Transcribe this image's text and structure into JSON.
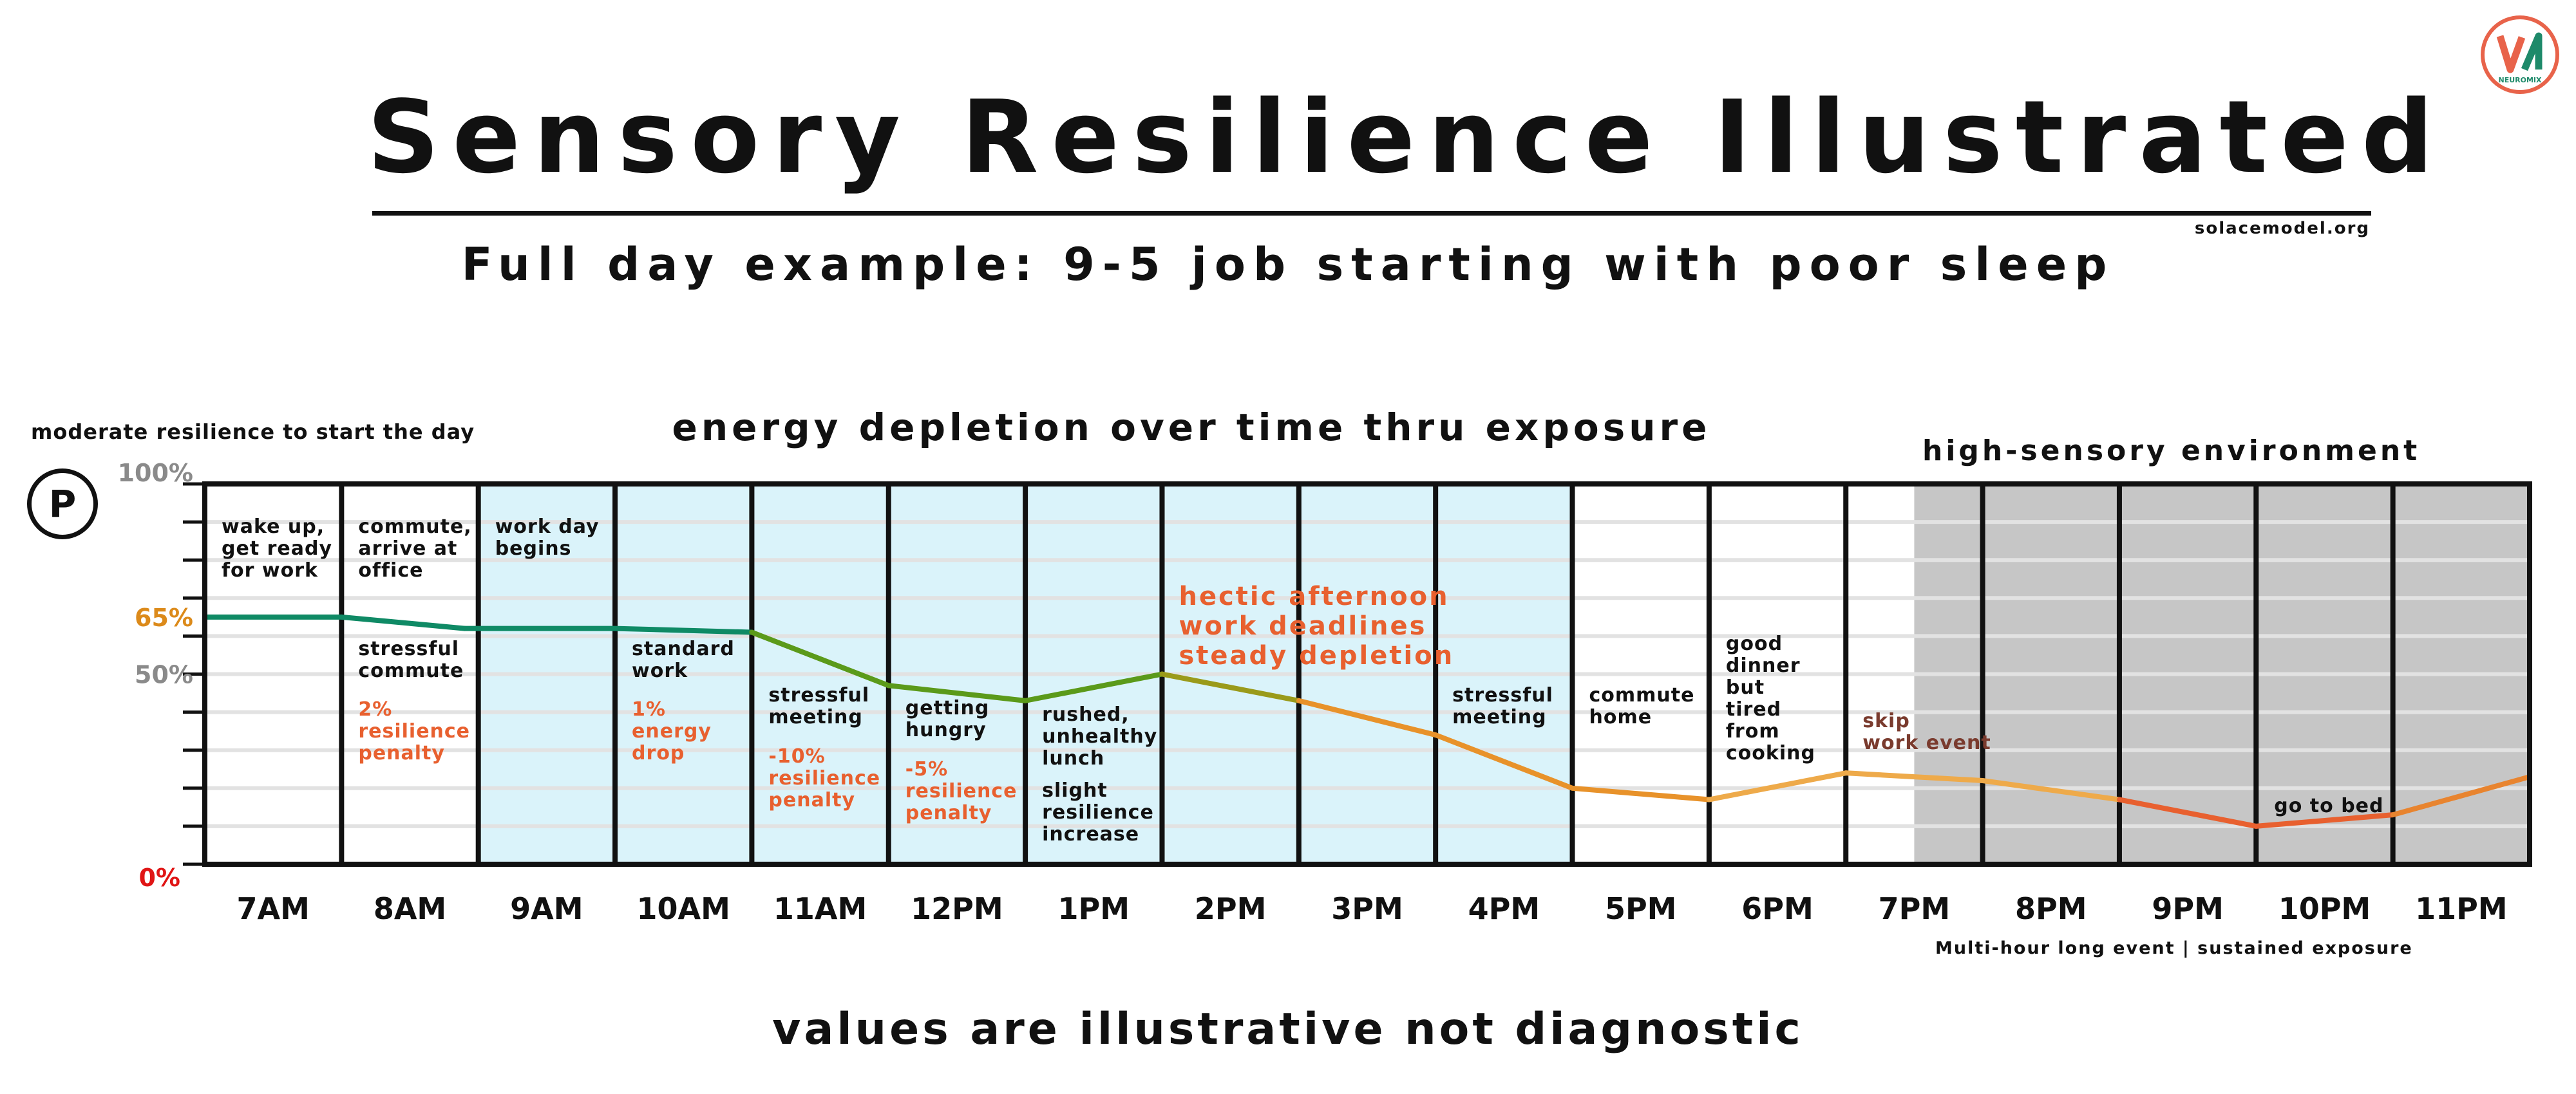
{
  "title": "Sensory Resilience Illustrated",
  "site": "solacemodel.org",
  "subtitle": "Full day example:  9-5 job starting with poor sleep",
  "start_note": "moderate resilience to start the day",
  "badge_letter": "P",
  "chart_title": "energy depletion over time thru exposure",
  "environment_label": "high-sensory environment",
  "multi_hour_note": "Multi-hour long event | sustained exposure",
  "footer": "values are illustrative not diagnostic",
  "logo_text": "NEUROMIX",
  "colors": {
    "work_shade": "#daf3fa",
    "high_sensory_shade": "#c6c6c6",
    "accent_orange": "#e8602f",
    "label_65": "#dc8a1a",
    "label_0": "#e01515",
    "axis_gray": "#8a8a8a",
    "logo_red": "#e8634a",
    "logo_green": "#1e8a6a"
  },
  "chart_data": {
    "type": "line",
    "x": [
      "7AM",
      "8AM",
      "9AM",
      "10AM",
      "11AM",
      "12PM",
      "1PM",
      "2PM",
      "3PM",
      "4PM",
      "5PM",
      "6PM",
      "7PM",
      "8PM",
      "9PM",
      "10PM",
      "11PM"
    ],
    "ylim": [
      0,
      100
    ],
    "y_tick_labels": [
      "100%",
      "65%",
      "50%",
      "0%"
    ],
    "series": [
      {
        "points": [
          [
            0,
            65
          ],
          [
            1,
            65
          ],
          [
            1.9,
            62
          ],
          [
            3,
            62
          ],
          [
            4,
            61
          ],
          [
            5,
            47
          ],
          [
            6,
            43
          ],
          [
            7,
            50
          ],
          [
            8,
            43
          ],
          [
            9,
            34
          ],
          [
            10,
            20
          ],
          [
            11,
            17
          ],
          [
            12,
            24
          ],
          [
            13,
            22
          ],
          [
            14,
            17
          ],
          [
            15,
            10
          ],
          [
            16,
            13
          ],
          [
            17,
            23
          ]
        ]
      }
    ],
    "shading": {
      "work_hours": [
        "9AM",
        "10AM",
        "11AM",
        "12PM",
        "1PM",
        "2PM",
        "3PM",
        "4PM"
      ],
      "high_sensory_start": 12.5,
      "high_sensory_end": 17
    },
    "annotations": [
      {
        "slot": 0,
        "text": [
          "wake up,",
          "get ready",
          "for work"
        ],
        "color": "dark",
        "row": "top"
      },
      {
        "slot": 1,
        "text": [
          "commute,",
          "arrive at",
          "office"
        ],
        "color": "dark",
        "row": "top"
      },
      {
        "slot": 1,
        "text": [
          "stressful",
          "commute"
        ],
        "color": "dark",
        "row": "mid"
      },
      {
        "slot": 1,
        "text": [
          "2%",
          "resilience",
          "penalty"
        ],
        "color": "accent",
        "row": "low"
      },
      {
        "slot": 2,
        "text": [
          "work day",
          "begins"
        ],
        "color": "dark",
        "row": "top"
      },
      {
        "slot": 3,
        "text": [
          "standard",
          "work"
        ],
        "color": "dark",
        "row": "mid"
      },
      {
        "slot": 3,
        "text": [
          "1%",
          "energy",
          "drop"
        ],
        "color": "accent",
        "row": "low"
      },
      {
        "slot": 4,
        "text": [
          "stressful",
          "meeting"
        ],
        "color": "dark",
        "row": "mid2"
      },
      {
        "slot": 4,
        "text": [
          "-10%",
          "resilience",
          "penalty"
        ],
        "color": "accent",
        "row": "low2"
      },
      {
        "slot": 5,
        "text": [
          "getting",
          "hungry"
        ],
        "color": "dark",
        "row": "mid3"
      },
      {
        "slot": 5,
        "text": [
          "-5%",
          "resilience",
          "penalty"
        ],
        "color": "accent",
        "row": "low3"
      },
      {
        "slot": 6,
        "text": [
          "rushed,",
          "unhealthy",
          "lunch"
        ],
        "color": "dark",
        "row": "mid4"
      },
      {
        "slot": 6,
        "text": [
          "slight",
          "resilience",
          "increase"
        ],
        "color": "dark",
        "row": "low4"
      },
      {
        "slot": 7,
        "text": [
          "hectic afternoon",
          "work deadlines",
          "steady depletion"
        ],
        "color": "accent",
        "row": "big"
      },
      {
        "slot": 9,
        "text": [
          "stressful",
          "meeting"
        ],
        "color": "dark",
        "row": "mid2"
      },
      {
        "slot": 10,
        "text": [
          "commute",
          "home"
        ],
        "color": "dark",
        "row": "mid2"
      },
      {
        "slot": 11,
        "text": [
          "good",
          "dinner",
          "but",
          "tired",
          "from",
          "cooking"
        ],
        "color": "dark",
        "row": "mid5"
      },
      {
        "slot": 12,
        "text": [
          "skip",
          "work event"
        ],
        "color": "brown",
        "row": "mid6"
      },
      {
        "slot": 15,
        "text": [
          "go to bed"
        ],
        "color": "dark",
        "row": "bed"
      }
    ]
  }
}
